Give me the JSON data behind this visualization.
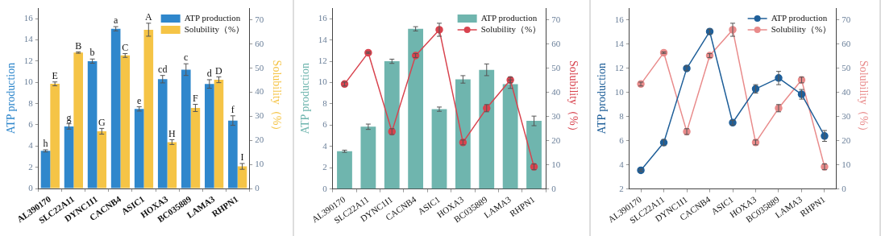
{
  "chart_data": [
    {
      "type": "bar",
      "categories": [
        "AL390170",
        "SLC22A11",
        "DYNC1I1",
        "CACNB4",
        "ASIC1",
        "HOXA3",
        "BC035889",
        "LAMA3",
        "RHPN1"
      ],
      "ylabel": "ATP production",
      "y2label": "Solubility（%）",
      "ylim": [
        0,
        17
      ],
      "yticks": [
        0,
        2,
        4,
        6,
        8,
        10,
        12,
        14,
        16
      ],
      "y2lim": [
        0,
        75
      ],
      "y2ticks": [
        0,
        10,
        20,
        30,
        40,
        50,
        60,
        70
      ],
      "legend": "top right",
      "series": [
        {
          "name": "ATP production",
          "color": "#2f87cc",
          "values": [
            3.55,
            5.85,
            12.0,
            15.05,
            7.5,
            10.3,
            11.2,
            9.85,
            6.4
          ],
          "errors": [
            0.1,
            0.25,
            0.2,
            0.2,
            0.2,
            0.35,
            0.55,
            0.4,
            0.45
          ],
          "value_labels": [
            "h",
            "g",
            "b",
            "a",
            "e",
            "cd",
            "c",
            "d",
            "f"
          ]
        },
        {
          "name": "Solubility（%）",
          "color": "#f5c446",
          "axis": "y2",
          "values": [
            43.5,
            56.5,
            23.8,
            55.3,
            66,
            19.3,
            33.5,
            45.2,
            9.2
          ],
          "errors": [
            0.8,
            0.3,
            1.2,
            0.8,
            2.7,
            1.0,
            1.5,
            1.2,
            1.2
          ],
          "value_labels": [
            "E",
            "B",
            "G",
            "C",
            "A",
            "H",
            "F",
            "D",
            "I"
          ]
        }
      ]
    },
    {
      "type": "bar",
      "categories": [
        "AL390170",
        "SLC22A11",
        "DYNC1I1",
        "CACNB4",
        "ASIC1",
        "HOXA3",
        "BC035889",
        "LAMA3",
        "RHPN1"
      ],
      "ylabel": "ATP production",
      "y2label": "Solubility（%）",
      "ylim": [
        0,
        17
      ],
      "yticks": [
        0,
        2,
        4,
        6,
        8,
        10,
        12,
        14,
        16
      ],
      "y2lim": [
        0,
        75
      ],
      "y2ticks": [
        0,
        10,
        20,
        30,
        40,
        50,
        60,
        70
      ],
      "legend": "top right",
      "marker": "circle",
      "series": [
        {
          "name": "ATP production",
          "color": "#6fb5ae",
          "values": [
            3.55,
            5.85,
            12.0,
            15.05,
            7.5,
            10.3,
            11.2,
            9.85,
            6.4
          ],
          "errors": [
            0.1,
            0.25,
            0.2,
            0.2,
            0.2,
            0.35,
            0.55,
            0.4,
            0.45
          ]
        },
        {
          "name": "Solubility（%）",
          "type": "line",
          "color": "#d8434e",
          "axis": "y2",
          "values": [
            43.5,
            56.5,
            23.8,
            55.3,
            66,
            19.3,
            33.5,
            45.2,
            9.2
          ],
          "errors": [
            0.8,
            0.3,
            1.2,
            0.8,
            2.7,
            1.0,
            1.5,
            1.2,
            1.2
          ]
        }
      ]
    },
    {
      "type": "line",
      "categories": [
        "AL390170",
        "SLC22A11",
        "DYNC1I1",
        "CACNB4",
        "ASIC1",
        "HOXA3",
        "BC035889",
        "LAMA3",
        "RHPN1"
      ],
      "ylabel": "ATP production",
      "y2label": "Solubility（%）",
      "ylim": [
        2,
        17
      ],
      "yticks": [
        2,
        4,
        6,
        8,
        10,
        12,
        14,
        16
      ],
      "y2lim": [
        0,
        75
      ],
      "y2ticks": [
        0,
        10,
        20,
        30,
        40,
        50,
        60,
        70
      ],
      "legend": "top right",
      "marker": "circle",
      "series": [
        {
          "name": "ATP production",
          "color": "#1f5f99",
          "values": [
            3.55,
            5.85,
            12.0,
            15.05,
            7.5,
            10.3,
            11.2,
            9.85,
            6.4
          ],
          "errors": [
            0.1,
            0.25,
            0.2,
            0.2,
            0.2,
            0.35,
            0.55,
            0.4,
            0.45
          ]
        },
        {
          "name": "Solubility（%）",
          "color": "#e98b8b",
          "axis": "y2",
          "values": [
            43.5,
            56.5,
            23.8,
            55.3,
            66,
            19.3,
            33.5,
            45.2,
            9.2
          ],
          "errors": [
            0.8,
            0.3,
            1.2,
            0.8,
            2.7,
            1.0,
            1.5,
            1.2,
            1.2
          ]
        }
      ]
    }
  ]
}
